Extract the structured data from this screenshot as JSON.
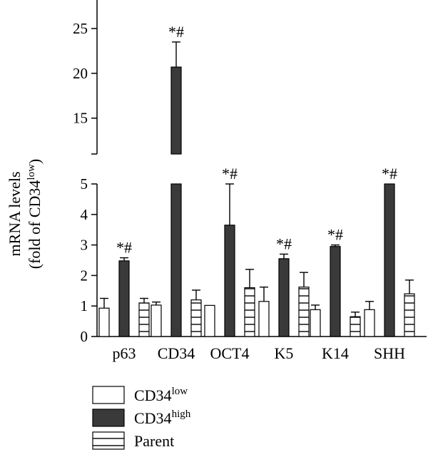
{
  "chart_data": {
    "type": "bar",
    "broken_axis": true,
    "ylabel_line1": "mRNA levels",
    "ylabel_line2_prefix": "(fold of CD34",
    "ylabel_line2_sup": "low",
    "ylabel_line2_suffix": ")",
    "lower_ylim": [
      0,
      5
    ],
    "upper_ylim": [
      11,
      26
    ],
    "lower_ticks": [
      "0",
      "1",
      "2",
      "3",
      "4",
      "5"
    ],
    "upper_ticks": [
      "15",
      "20",
      "25"
    ],
    "categories": [
      "p63",
      "CD34",
      "OCT4",
      "K5",
      "K14",
      "SHH"
    ],
    "series": [
      {
        "name_base": "CD34",
        "name_sup": "low",
        "fill": "#ffffff",
        "pattern": "none",
        "values": [
          0.93,
          1.03,
          1.02,
          1.15,
          0.88,
          0.88
        ],
        "errors": [
          0.32,
          0.1,
          0.0,
          0.47,
          0.15,
          0.27
        ]
      },
      {
        "name_base": "CD34",
        "name_sup": "high",
        "fill": "#3a3a3a",
        "pattern": "none",
        "values": [
          2.48,
          20.7,
          3.65,
          2.55,
          2.95,
          5.0
        ],
        "errors": [
          0.1,
          2.8,
          1.35,
          0.15,
          0.05,
          0.0
        ]
      },
      {
        "name": "Parent",
        "fill": "#ffffff",
        "pattern": "horizontal-lines",
        "values": [
          1.1,
          1.2,
          1.6,
          1.62,
          0.65,
          1.4
        ],
        "errors": [
          0.15,
          0.32,
          0.6,
          0.48,
          0.15,
          0.45
        ]
      }
    ],
    "annotations": [
      "*#",
      "*#",
      "*#",
      "*#",
      "*#",
      "*#"
    ],
    "legend_position": "bottom-left"
  }
}
